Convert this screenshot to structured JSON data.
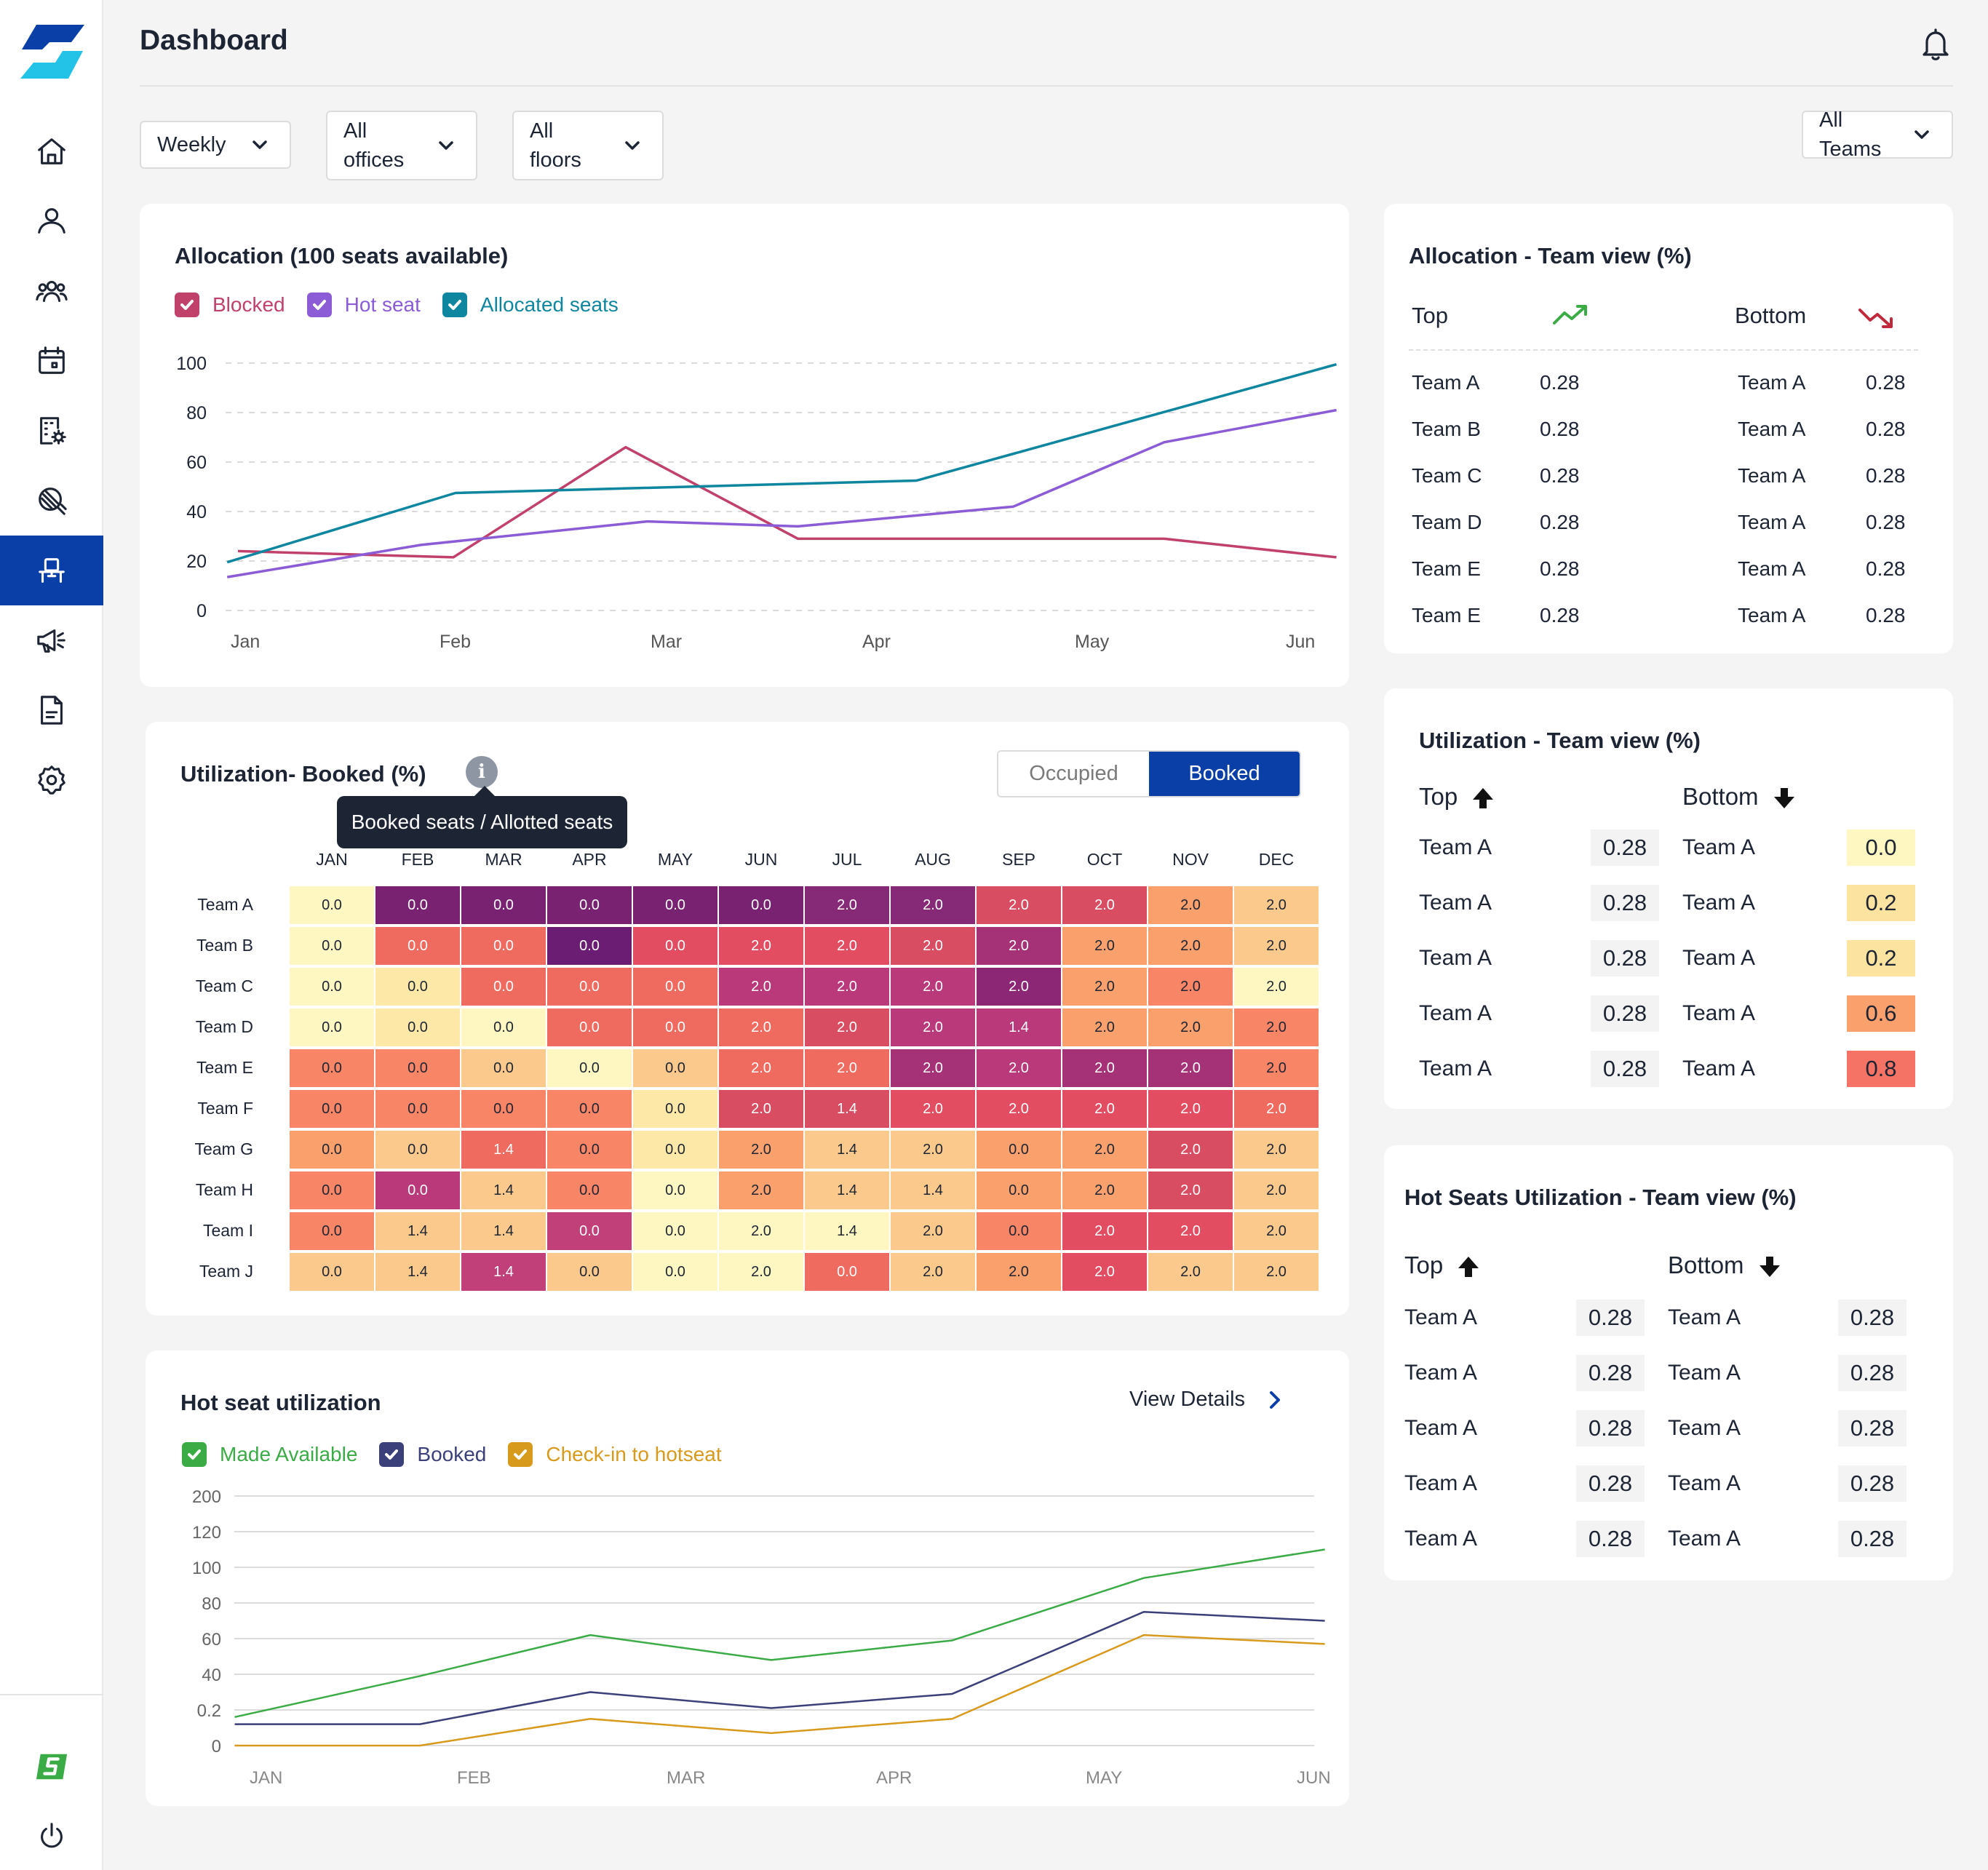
{
  "header": {
    "title": "Dashboard"
  },
  "filters": {
    "period": "Weekly",
    "offices": "All\noffices",
    "floors": "All\nfloors",
    "teams": "All\nTeams"
  },
  "colors": {
    "accent": "#0b3fa8",
    "blocked": "#c0416a",
    "hot_seat": "#8b5cd6",
    "allocated": "#0f86a0",
    "made_available": "#3bab46",
    "booked": "#3b3f7a",
    "checkin": "#d79a1c"
  },
  "sidebar": {
    "items": [
      "home-icon",
      "user-icon",
      "users-icon",
      "calendar-icon",
      "building-settings-icon",
      "badge-icon",
      "desk-icon",
      "megaphone-icon",
      "document-icon",
      "gear-icon"
    ],
    "active": "desk-icon",
    "footer": [
      "brand-icon",
      "power-icon"
    ]
  },
  "allocation": {
    "title": "Allocation (100 seats available)",
    "legend": [
      "Blocked",
      "Hot seat",
      "Allocated seats"
    ]
  },
  "utilization": {
    "title": "Utilization- Booked (%)",
    "tooltip": "Booked seats / Allotted seats",
    "toggle": {
      "off": "Occupied",
      "on": "Booked"
    },
    "columns": [
      "JAN",
      "FEB",
      "MAR",
      "APR",
      "MAY",
      "JUN",
      "JUL",
      "AUG",
      "SEP",
      "OCT",
      "NOV",
      "DEC"
    ],
    "rows": [
      {
        "team": "Team A",
        "cells": [
          "0.0",
          "0.0",
          "0.0",
          "0.0",
          "0.0",
          "0.0",
          "2.0",
          "2.0",
          "2.0",
          "2.0",
          "2.0",
          "2.0"
        ]
      },
      {
        "team": "Team B",
        "cells": [
          "0.0",
          "0.0",
          "0.0",
          "0.0",
          "0.0",
          "2.0",
          "2.0",
          "2.0",
          "2.0",
          "2.0",
          "2.0",
          "2.0"
        ]
      },
      {
        "team": "Team C",
        "cells": [
          "0.0",
          "0.0",
          "0.0",
          "0.0",
          "0.0",
          "2.0",
          "2.0",
          "2.0",
          "2.0",
          "2.0",
          "2.0",
          "2.0"
        ]
      },
      {
        "team": "Team D",
        "cells": [
          "0.0",
          "0.0",
          "0.0",
          "0.0",
          "0.0",
          "2.0",
          "2.0",
          "2.0",
          "1.4",
          "2.0",
          "2.0",
          "2.0"
        ]
      },
      {
        "team": "Team E",
        "cells": [
          "0.0",
          "0.0",
          "0.0",
          "0.0",
          "0.0",
          "2.0",
          "2.0",
          "2.0",
          "2.0",
          "2.0",
          "2.0",
          "2.0"
        ]
      },
      {
        "team": "Team F",
        "cells": [
          "0.0",
          "0.0",
          "0.0",
          "0.0",
          "0.0",
          "2.0",
          "1.4",
          "2.0",
          "2.0",
          "2.0",
          "2.0",
          "2.0"
        ]
      },
      {
        "team": "Team G",
        "cells": [
          "0.0",
          "0.0",
          "1.4",
          "0.0",
          "0.0",
          "2.0",
          "1.4",
          "2.0",
          "0.0",
          "2.0",
          "2.0",
          "2.0"
        ]
      },
      {
        "team": "Team H",
        "cells": [
          "0.0",
          "0.0",
          "1.4",
          "0.0",
          "0.0",
          "2.0",
          "1.4",
          "1.4",
          "0.0",
          "2.0",
          "2.0",
          "2.0"
        ]
      },
      {
        "team": "Team I",
        "cells": [
          "0.0",
          "1.4",
          "1.4",
          "0.0",
          "0.0",
          "2.0",
          "1.4",
          "2.0",
          "0.0",
          "2.0",
          "2.0",
          "2.0"
        ]
      },
      {
        "team": "Team J",
        "cells": [
          "0.0",
          "1.4",
          "1.4",
          "0.0",
          "0.0",
          "2.0",
          "0.0",
          "2.0",
          "2.0",
          "2.0",
          "2.0",
          "2.0"
        ]
      }
    ],
    "cell_colors": [
      [
        "#fef7c1",
        "#7a2272",
        "#7a2272",
        "#7a2272",
        "#7a2272",
        "#7a2272",
        "#862a77",
        "#862a77",
        "#d94d63",
        "#d94d63",
        "#f9a06d",
        "#fbc98c"
      ],
      [
        "#fef7c1",
        "#f06b5f",
        "#f06b5f",
        "#6b1d74",
        "#e34d61",
        "#e34d61",
        "#e34d61",
        "#d94d63",
        "#a53277",
        "#f9a06d",
        "#f9a06d",
        "#fbc98c"
      ],
      [
        "#fef7c1",
        "#fde8a7",
        "#f06b5f",
        "#f06b5f",
        "#f06b5f",
        "#b9397a",
        "#b9397a",
        "#b9397a",
        "#8c2775",
        "#f9a06d",
        "#f78566",
        "#fef7c1"
      ],
      [
        "#fef7c1",
        "#fde8a7",
        "#fef7c1",
        "#f06b5f",
        "#f06b5f",
        "#f06b5f",
        "#d94d63",
        "#b9397a",
        "#b9397a",
        "#f9a06d",
        "#f9a06d",
        "#f78566"
      ],
      [
        "#f78566",
        "#f78566",
        "#fbc98c",
        "#fef7c1",
        "#fbc98c",
        "#f06b5f",
        "#f06b5f",
        "#a53277",
        "#b9397a",
        "#a53277",
        "#a53277",
        "#f78566"
      ],
      [
        "#f78566",
        "#f78566",
        "#f78566",
        "#f78566",
        "#fde8a7",
        "#d94d63",
        "#d94d63",
        "#e34d61",
        "#e34d61",
        "#e34d61",
        "#e34d61",
        "#f06b5f"
      ],
      [
        "#f9a06d",
        "#fbc98c",
        "#f06b5f",
        "#f78566",
        "#fde8a7",
        "#f9a06d",
        "#fbc98c",
        "#fbc98c",
        "#f9a06d",
        "#f9a06d",
        "#d94d63",
        "#fbc98c"
      ],
      [
        "#f78566",
        "#b9397a",
        "#fbc98c",
        "#f78566",
        "#fef7c1",
        "#f9a06d",
        "#fbc98c",
        "#fbc98c",
        "#f9a06d",
        "#f9a06d",
        "#d94d63",
        "#fbc98c"
      ],
      [
        "#f78566",
        "#fbc98c",
        "#fbc98c",
        "#c2407a",
        "#fef7c1",
        "#fef7c1",
        "#fef7c1",
        "#fbc98c",
        "#f78566",
        "#e34d61",
        "#e34d61",
        "#fbc98c"
      ],
      [
        "#fbc98c",
        "#fbc98c",
        "#c2407a",
        "#fbc98c",
        "#fef7c1",
        "#fef7c1",
        "#f06b5f",
        "#fbc98c",
        "#f9a06d",
        "#e34d61",
        "#fbc98c",
        "#fbc98c"
      ]
    ]
  },
  "hot_seat": {
    "title": "Hot seat utilization",
    "view_details": "View Details",
    "legend": [
      "Made Available",
      "Booked",
      "Check-in to hotseat"
    ]
  },
  "allocation_team": {
    "title": "Allocation - Team view (%)",
    "top_label": "Top",
    "bottom_label": "Bottom",
    "top": [
      {
        "team": "Team A",
        "value": "0.28"
      },
      {
        "team": "Team B",
        "value": "0.28"
      },
      {
        "team": "Team C",
        "value": "0.28"
      },
      {
        "team": "Team D",
        "value": "0.28"
      },
      {
        "team": "Team E",
        "value": "0.28"
      },
      {
        "team": "Team E",
        "value": "0.28"
      }
    ],
    "bottom": [
      {
        "team": "Team A",
        "value": "0.28"
      },
      {
        "team": "Team A",
        "value": "0.28"
      },
      {
        "team": "Team A",
        "value": "0.28"
      },
      {
        "team": "Team A",
        "value": "0.28"
      },
      {
        "team": "Team A",
        "value": "0.28"
      },
      {
        "team": "Team A",
        "value": "0.28"
      }
    ]
  },
  "utilization_team": {
    "title": "Utilization - Team view (%)",
    "top_label": "Top",
    "bottom_label": "Bottom",
    "top": [
      {
        "team": "Team A",
        "value": "0.28"
      },
      {
        "team": "Team A",
        "value": "0.28"
      },
      {
        "team": "Team A",
        "value": "0.28"
      },
      {
        "team": "Team A",
        "value": "0.28"
      },
      {
        "team": "Team A",
        "value": "0.28"
      }
    ],
    "bottom": [
      {
        "team": "Team A",
        "value": "0.0",
        "color": "#fef7c1"
      },
      {
        "team": "Team A",
        "value": "0.2",
        "color": "#fde3a0"
      },
      {
        "team": "Team A",
        "value": "0.2",
        "color": "#fde3a0"
      },
      {
        "team": "Team A",
        "value": "0.6",
        "color": "#f9a06d"
      },
      {
        "team": "Team A",
        "value": "0.8",
        "color": "#f47364"
      }
    ]
  },
  "hotseat_team": {
    "title": "Hot Seats Utilization - Team view (%)",
    "top_label": "Top",
    "bottom_label": "Bottom",
    "top": [
      {
        "team": "Team A",
        "value": "0.28"
      },
      {
        "team": "Team A",
        "value": "0.28"
      },
      {
        "team": "Team A",
        "value": "0.28"
      },
      {
        "team": "Team A",
        "value": "0.28"
      },
      {
        "team": "Team A",
        "value": "0.28"
      }
    ],
    "bottom": [
      {
        "team": "Team A",
        "value": "0.28"
      },
      {
        "team": "Team A",
        "value": "0.28"
      },
      {
        "team": "Team A",
        "value": "0.28"
      },
      {
        "team": "Team A",
        "value": "0.28"
      },
      {
        "team": "Team A",
        "value": "0.28"
      }
    ]
  },
  "chart_data": [
    {
      "type": "line",
      "x": [
        "Jan",
        "Feb",
        "Mar",
        "Apr",
        "May",
        "Jun"
      ],
      "y_ticks": [
        "0",
        "20",
        "40",
        "60",
        "80",
        "100"
      ],
      "ylim": [
        0,
        100
      ],
      "grid": true,
      "series": [
        {
          "name": "Blocked",
          "points": [
            [
              0,
              24
            ],
            [
              1,
              21.5
            ],
            [
              1.8,
              66
            ],
            [
              2.6,
              29
            ],
            [
              4.3,
              29
            ],
            [
              5.1,
              21.5
            ]
          ]
        },
        {
          "name": "Hot seat",
          "points": [
            [
              -0.05,
              13.5
            ],
            [
              0.85,
              26.5
            ],
            [
              1.9,
              36
            ],
            [
              2.6,
              34
            ],
            [
              3.35,
              40
            ],
            [
              3.6,
              42
            ],
            [
              4.3,
              68
            ],
            [
              5.1,
              81
            ]
          ]
        },
        {
          "name": "Allocated seats",
          "points": [
            [
              -0.05,
              19.5
            ],
            [
              1.01,
              47.5
            ],
            [
              3.15,
              52.5
            ],
            [
              5.1,
              99.5
            ]
          ]
        }
      ]
    },
    {
      "type": "line",
      "x": [
        "JAN",
        "FEB",
        "MAR",
        "APR",
        "MAY",
        "JUN"
      ],
      "y_ticks": [
        "0",
        "0.2",
        "40",
        "60",
        "80",
        "100",
        "120",
        "200"
      ],
      "grid": true,
      "series": [
        {
          "name": "Made Available",
          "points": [
            [
              -0.07,
              0.8
            ],
            [
              0.8,
              1.95
            ],
            [
              1.6,
              3.1
            ],
            [
              2.45,
              2.4
            ],
            [
              3.3,
              2.95
            ],
            [
              4.2,
              4.7
            ],
            [
              5.05,
              5.5
            ]
          ]
        },
        {
          "name": "Booked",
          "points": [
            [
              -0.07,
              0.6
            ],
            [
              0.8,
              0.6
            ],
            [
              1.6,
              1.5
            ],
            [
              2.45,
              1.05
            ],
            [
              3.3,
              1.45
            ],
            [
              4.2,
              3.75
            ],
            [
              5.05,
              3.5
            ]
          ]
        },
        {
          "name": "Check-in to hotseat",
          "points": [
            [
              -0.07,
              0
            ],
            [
              0.8,
              0
            ],
            [
              1.6,
              0.75
            ],
            [
              2.45,
              0.35
            ],
            [
              3.3,
              0.75
            ],
            [
              4.2,
              3.1
            ],
            [
              5.05,
              2.85
            ]
          ]
        }
      ]
    }
  ]
}
